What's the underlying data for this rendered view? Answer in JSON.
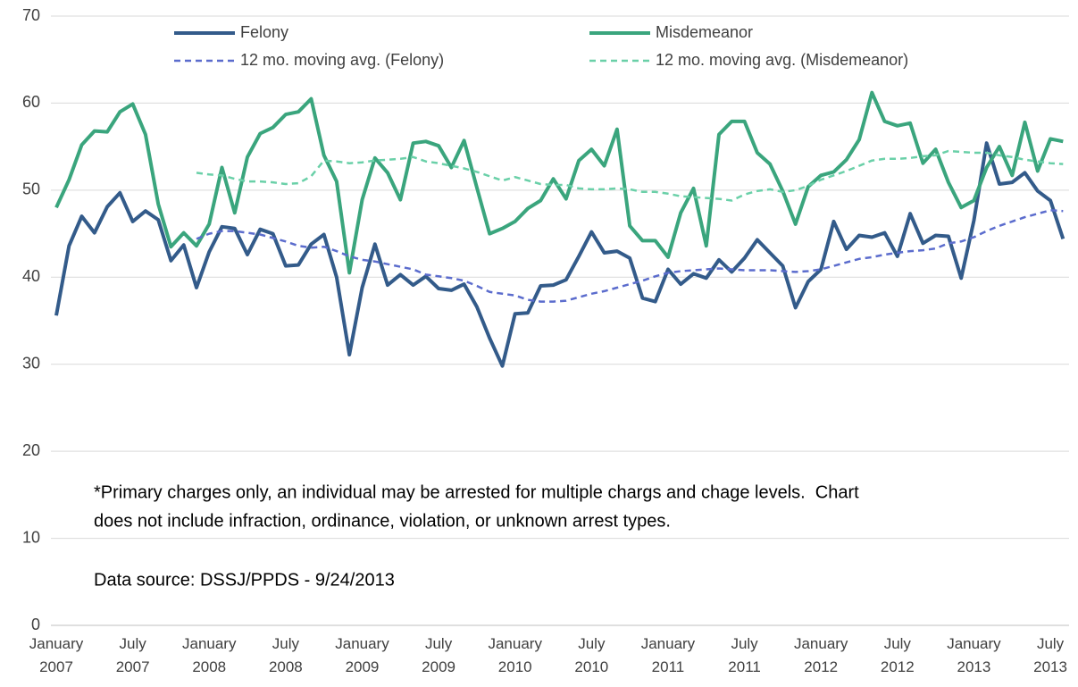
{
  "chart_data": {
    "type": "line",
    "categories": [
      "January 2007",
      null,
      null,
      null,
      null,
      null,
      "July 2007",
      null,
      null,
      null,
      null,
      null,
      "January 2008",
      null,
      null,
      null,
      null,
      null,
      "July 2008",
      null,
      null,
      null,
      null,
      null,
      "January 2009",
      null,
      null,
      null,
      null,
      null,
      "July 2009",
      null,
      null,
      null,
      null,
      null,
      "January 2010",
      null,
      null,
      null,
      null,
      null,
      "July 2010",
      null,
      null,
      null,
      null,
      null,
      "January 2011",
      null,
      null,
      null,
      null,
      null,
      "July 2011",
      null,
      null,
      null,
      null,
      null,
      "January 2012",
      null,
      null,
      null,
      null,
      null,
      "July 2012",
      null,
      null,
      null,
      null,
      null,
      "January 2013",
      null,
      null,
      null,
      null,
      null,
      "July 2013",
      null
    ],
    "series": [
      {
        "name": "Felony",
        "color": "#335b8a",
        "dashed": false,
        "values": [
          35.6,
          43.6,
          47,
          45.1,
          48.1,
          49.7,
          46.4,
          47.6,
          46.6,
          41.9,
          43.7,
          38.8,
          42.9,
          45.8,
          45.6,
          42.6,
          45.5,
          45,
          41.3,
          41.4,
          43.8,
          44.9,
          40,
          31.1,
          38.8,
          43.8,
          39.1,
          40.3,
          39.1,
          40.1,
          38.7,
          38.5,
          39.2,
          36.6,
          33,
          29.8,
          35.8,
          35.9,
          39,
          39.1,
          39.7,
          42.4,
          45.2,
          42.8,
          43,
          42.2,
          37.6,
          37.2,
          40.9,
          39.2,
          40.4,
          39.9,
          42,
          40.6,
          42.2,
          44.3,
          42.8,
          41.3,
          36.5,
          39.5,
          40.9,
          46.4,
          43.2,
          44.8,
          44.6,
          45.1,
          42.4,
          47.3,
          43.9,
          44.8,
          44.7,
          39.9,
          46.5,
          55.4,
          50.7,
          50.9,
          52,
          49.9,
          48.8,
          44.4
        ]
      },
      {
        "name": "Misdemeanor",
        "color": "#3aa57d",
        "dashed": false,
        "values": [
          48,
          51.2,
          55.2,
          56.8,
          56.7,
          59,
          59.9,
          56.4,
          48.4,
          43.5,
          45.1,
          43.6,
          46.1,
          52.6,
          47.4,
          53.8,
          56.5,
          57.2,
          58.7,
          59,
          60.5,
          54,
          51,
          40.5,
          48.9,
          53.7,
          52,
          48.9,
          55.4,
          55.6,
          55.1,
          52.6,
          55.7,
          50.3,
          45,
          45.6,
          46.4,
          47.9,
          48.8,
          51.3,
          49,
          53.4,
          54.7,
          52.8,
          57,
          45.9,
          44.2,
          44.2,
          42.3,
          47.4,
          50.2,
          43.6,
          56.4,
          57.9,
          57.9,
          54.3,
          53,
          49.9,
          46.1,
          50.4,
          51.7,
          52.1,
          53.5,
          55.8,
          61.2,
          57.9,
          57.4,
          57.7,
          53.1,
          54.7,
          50.9,
          48,
          48.8,
          52.6,
          55,
          51.7,
          57.8,
          52.2,
          55.9,
          55.6
        ]
      },
      {
        "name": "12 mo. moving avg. (Felony)",
        "color": "#5b6ccd",
        "dashed": true,
        "values": [
          null,
          null,
          null,
          null,
          null,
          null,
          null,
          null,
          null,
          null,
          null,
          44.4,
          45.0,
          45.3,
          45.3,
          45.1,
          44.9,
          44.5,
          44.1,
          43.6,
          43.4,
          43.5,
          43.0,
          42.4,
          42.0,
          41.8,
          41.5,
          41.2,
          40.9,
          40.3,
          40.1,
          39.9,
          39.6,
          39.0,
          38.3,
          38.1,
          37.9,
          37.4,
          37.2,
          37.2,
          37.3,
          37.7,
          38.1,
          38.4,
          38.8,
          39.2,
          39.6,
          40.1,
          40.5,
          40.7,
          40.8,
          40.9,
          41.0,
          40.9,
          40.8,
          40.8,
          40.8,
          40.7,
          40.6,
          40.7,
          40.9,
          41.3,
          41.7,
          42.1,
          42.3,
          42.6,
          42.8,
          43.0,
          43.1,
          43.3,
          43.9,
          44.1,
          44.6,
          45.3,
          45.9,
          46.4,
          46.9,
          47.3,
          47.7,
          47.6
        ]
      },
      {
        "name": "12 mo. moving avg. (Misdemeanor)",
        "color": "#6ad0a8",
        "dashed": true,
        "values": [
          null,
          null,
          null,
          null,
          null,
          null,
          null,
          null,
          null,
          null,
          null,
          52.0,
          51.8,
          51.7,
          51.3,
          51.0,
          51.0,
          50.9,
          50.7,
          50.8,
          51.6,
          53.4,
          53.3,
          53.1,
          53.2,
          53.4,
          53.5,
          53.6,
          53.8,
          53.3,
          53.1,
          52.8,
          52.5,
          52.1,
          51.6,
          51.1,
          51.5,
          51.1,
          50.7,
          50.6,
          50.6,
          50.2,
          50.1,
          50.1,
          50.2,
          50.1,
          49.8,
          49.8,
          49.6,
          49.3,
          49.2,
          49.1,
          49.0,
          48.8,
          49.5,
          49.9,
          50.1,
          49.8,
          50.0,
          50.5,
          51.2,
          51.7,
          52.2,
          52.8,
          53.4,
          53.6,
          53.6,
          53.7,
          53.9,
          54.0,
          54.5,
          54.4,
          54.3,
          54.3,
          54.0,
          53.8,
          53.5,
          53.3,
          53.1,
          53.0
        ]
      }
    ],
    "ylim": [
      0,
      70
    ],
    "yticks": [
      0,
      10,
      20,
      30,
      40,
      50,
      60,
      70
    ],
    "grid": true,
    "annotations": [
      "*Primary charges only, an individual may be arrested for multiple chargs and chage levels.  Chart",
      "does not include infraction, ordinance, violation, or unknown arrest types.",
      "Data source: DSSJ/PPDS - 9/24/2013"
    ]
  }
}
